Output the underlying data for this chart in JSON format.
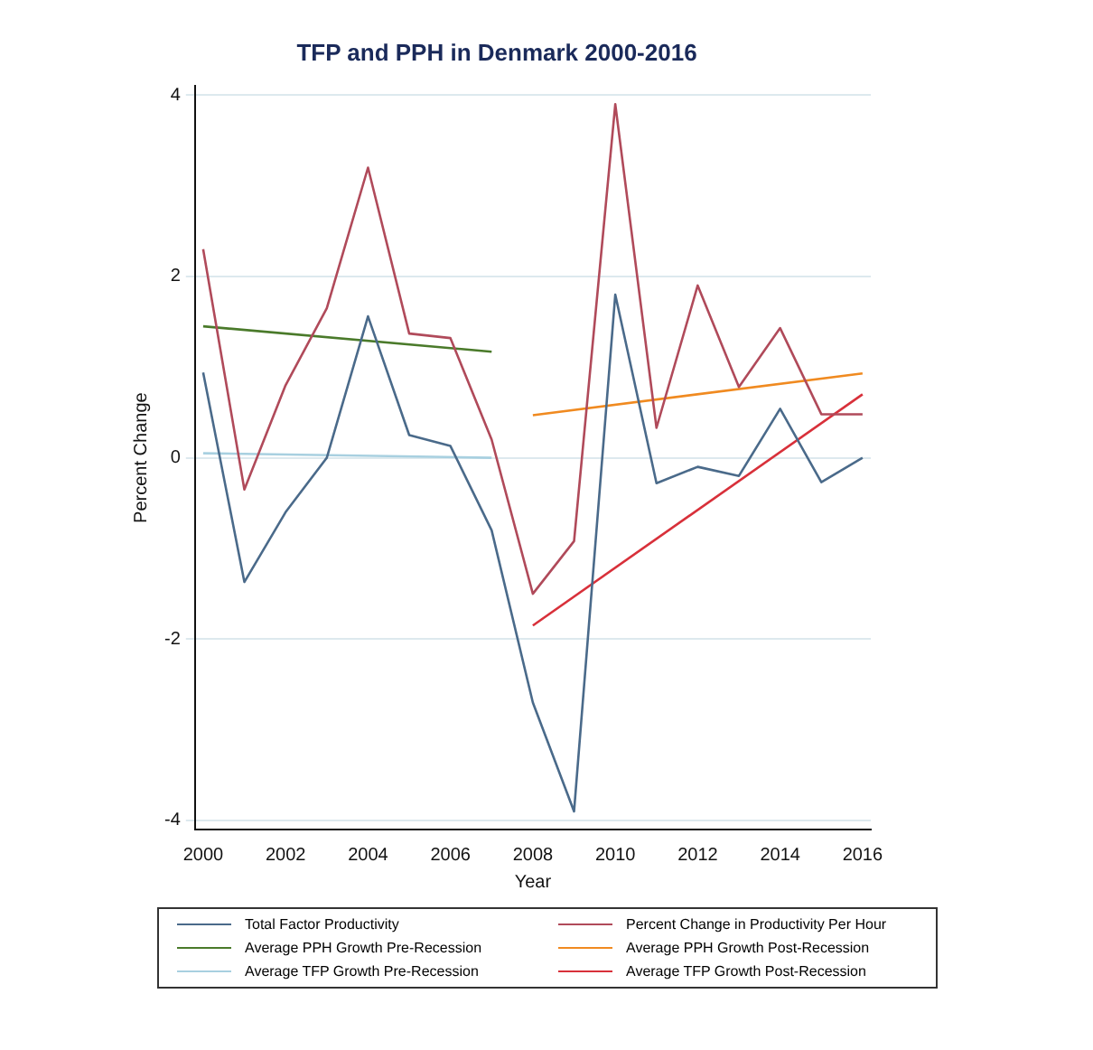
{
  "chart_data": {
    "type": "line",
    "title": "TFP and PPH in Denmark 2000-2016",
    "xlabel": "Year",
    "ylabel": "Percent Change",
    "x": [
      2000,
      2001,
      2002,
      2003,
      2004,
      2005,
      2006,
      2007,
      2008,
      2009,
      2010,
      2011,
      2012,
      2013,
      2014,
      2015,
      2016
    ],
    "series": [
      {
        "name": "Total Factor Productivity",
        "color": "#4a6a8a",
        "values": [
          0.94,
          -1.37,
          -0.6,
          0,
          1.56,
          0.25,
          0.13,
          -0.8,
          -2.7,
          -3.9,
          1.8,
          -0.28,
          -0.1,
          -0.2,
          0.54,
          -0.27,
          0
        ]
      },
      {
        "name": "Percent Change in Productivity Per Hour",
        "color": "#b04a5a",
        "values": [
          2.3,
          -0.35,
          0.8,
          1.65,
          3.2,
          1.37,
          1.32,
          0.2,
          -1.5,
          -0.92,
          3.9,
          0.33,
          1.9,
          0.78,
          1.43,
          0.48,
          0.48
        ]
      },
      {
        "name": "Average PPH Growth Pre-Recession",
        "color": "#4a7a2a",
        "x": [
          2000,
          2007
        ],
        "values": [
          1.45,
          1.17
        ]
      },
      {
        "name": "Average PPH Growth Post-Recession",
        "color": "#f08a20",
        "x": [
          2008,
          2016
        ],
        "values": [
          0.47,
          0.93
        ]
      },
      {
        "name": "Average TFP Growth Pre-Recession",
        "color": "#a8d0e0",
        "x": [
          2000,
          2007
        ],
        "values": [
          0.05,
          0.0
        ]
      },
      {
        "name": "Average TFP Growth Post-Recession",
        "color": "#d8303a",
        "x": [
          2008,
          2016
        ],
        "values": [
          -1.85,
          0.7
        ]
      }
    ],
    "xlim": [
      1999.8,
      2016.2
    ],
    "xticks": [
      2000,
      2002,
      2004,
      2006,
      2008,
      2010,
      2012,
      2014,
      2016
    ],
    "ylim": [
      -4.1,
      4.1
    ],
    "yticks": [
      -4,
      -2,
      0,
      2,
      4
    ],
    "grid": "y",
    "legend": "bottom",
    "marker": "none",
    "line_style": "solid"
  }
}
